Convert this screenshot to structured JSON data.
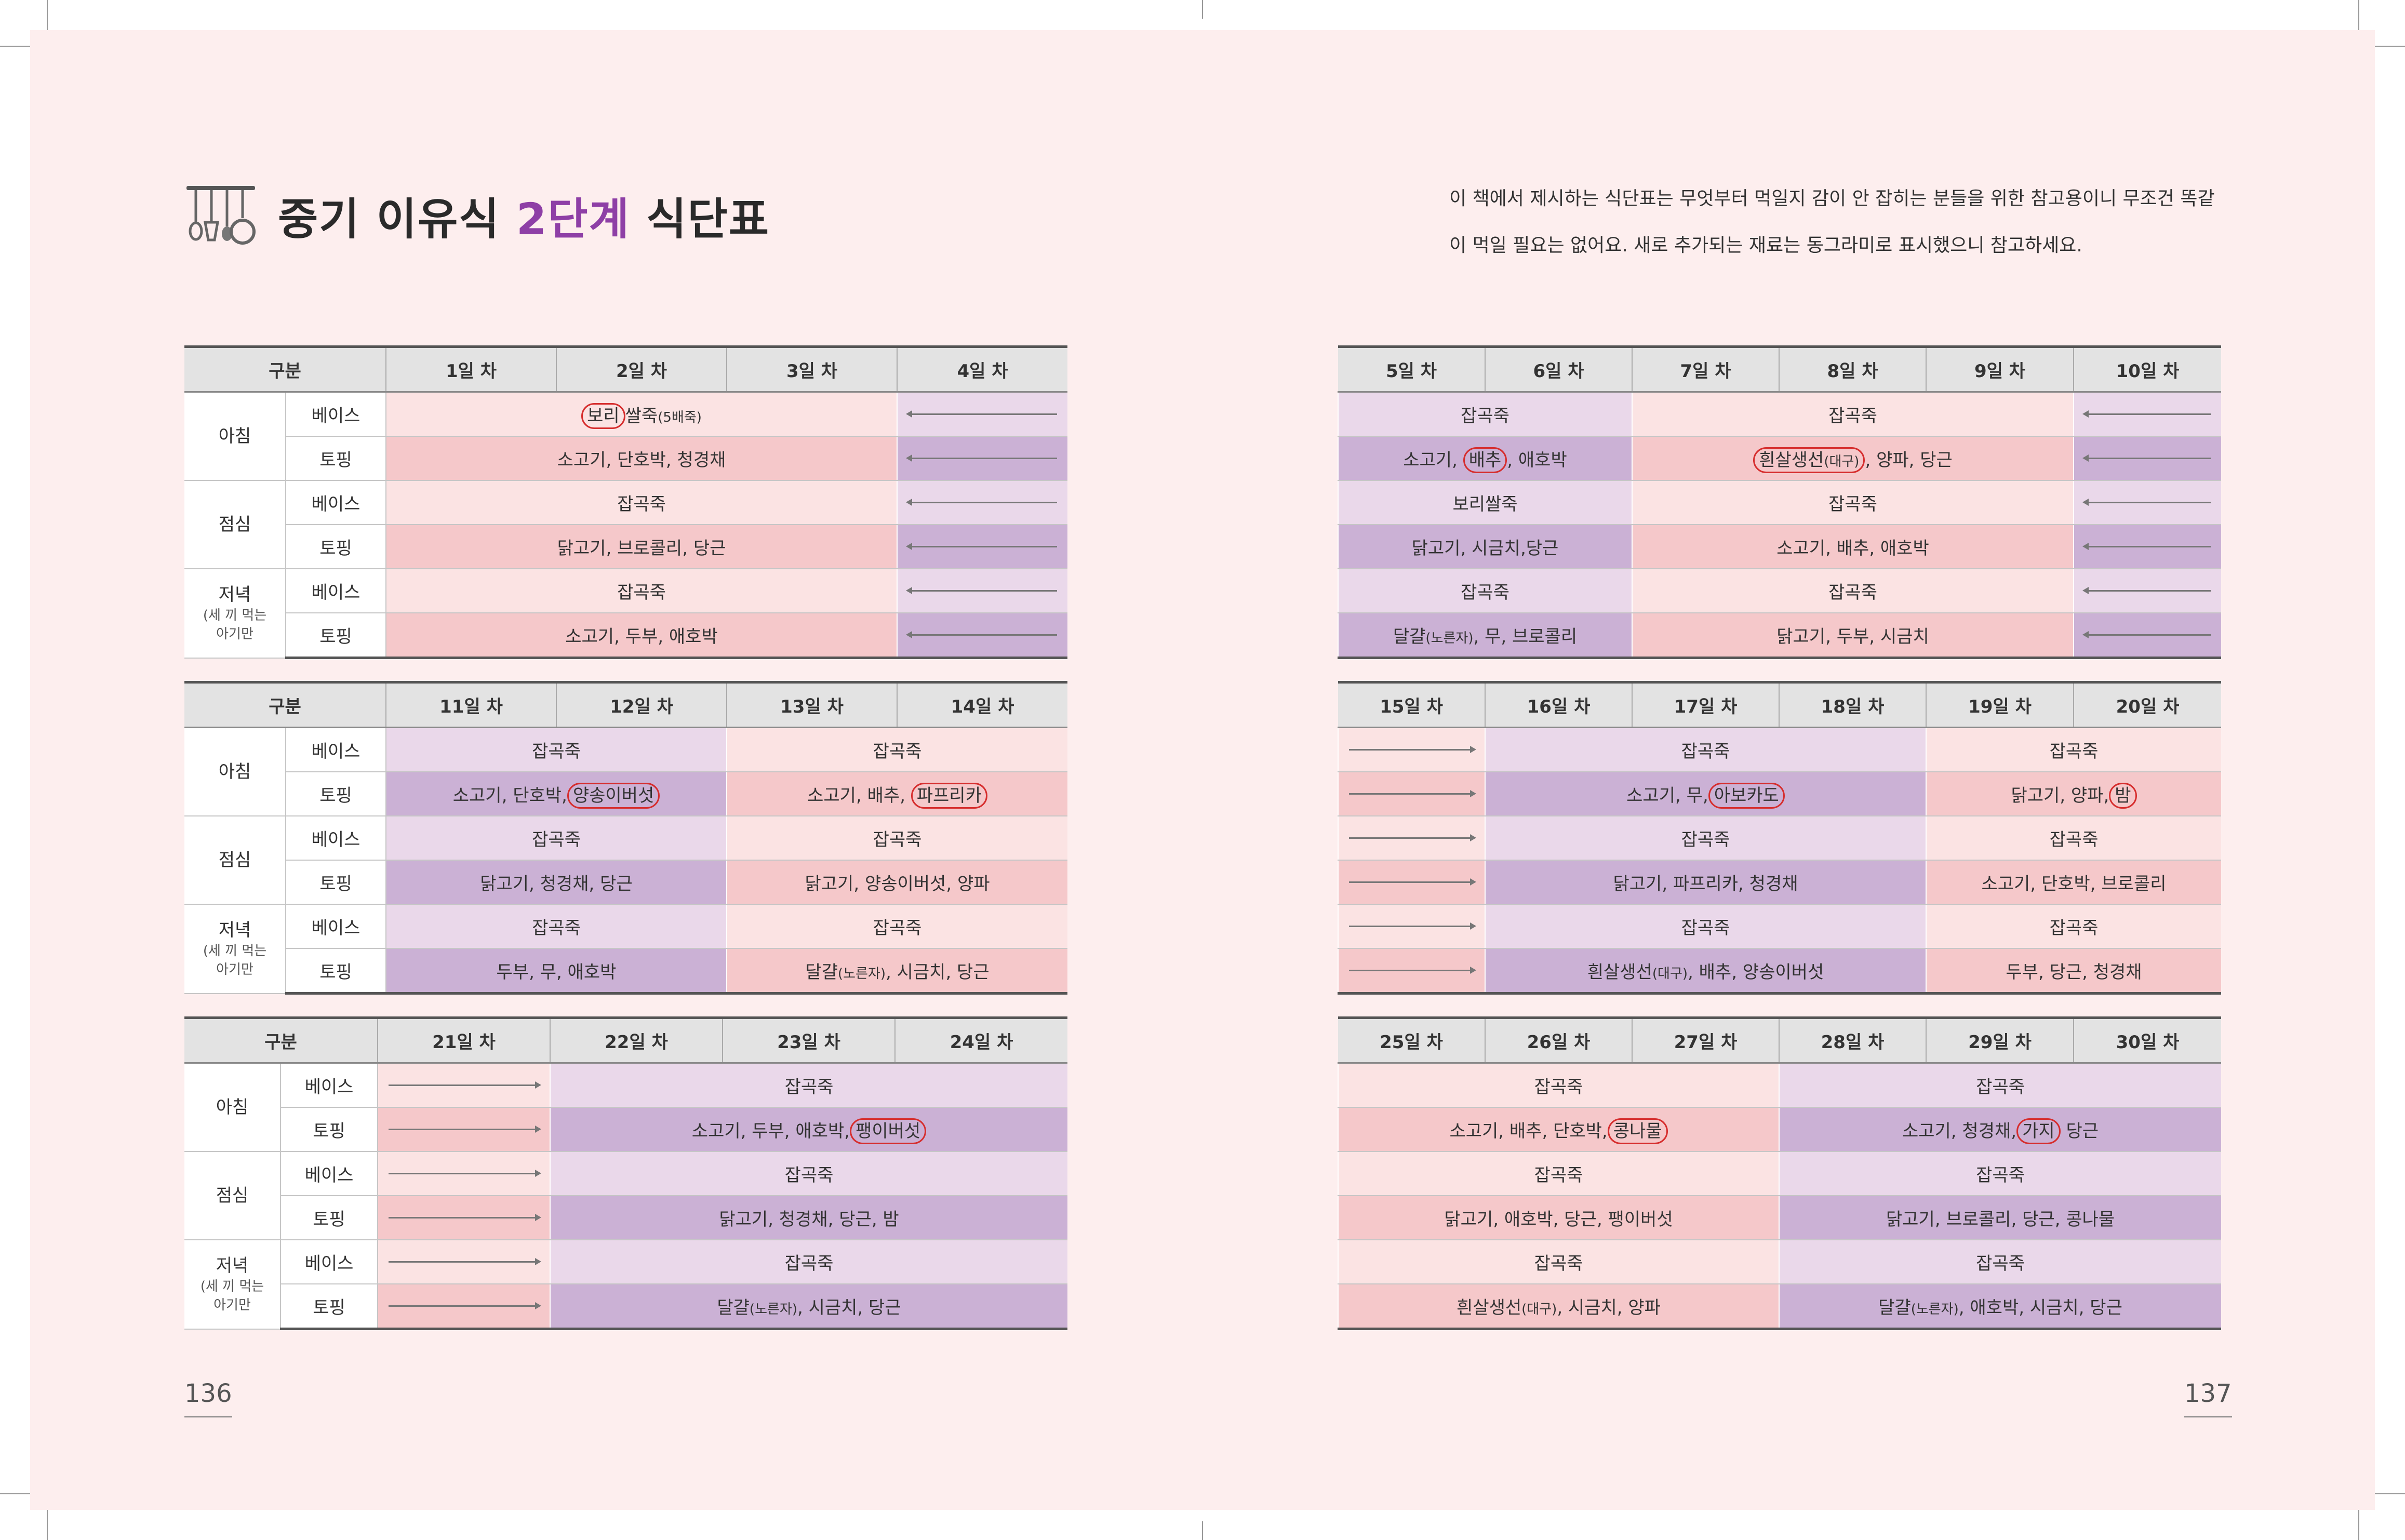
{
  "heading": {
    "title_prefix": "중기 이유식 ",
    "title_accent": "2단계",
    "title_suffix": " 식단표"
  },
  "intro": {
    "text": "이 책에서 제시하는 식단표는 무엇부터 먹일지 감이 안 잡히는 분들을 위한 참고용이니 무조건 똑같이 먹일 필요는 없어요. 새로 추가되는 재료는 동그라미로 표시했으니 참고하세요."
  },
  "labels": {
    "category": "구분",
    "breakfast": "아침",
    "lunch": "점심",
    "dinner": "저녁",
    "dinner_note_1": "(세 끼 먹는",
    "dinner_note_2": "아기만",
    "base": "베이스",
    "topping": "토핑"
  },
  "page_numbers": {
    "left": "136",
    "right": "137"
  },
  "tables": {
    "t1": {
      "days": [
        "1일 차",
        "2일 차",
        "3일 차",
        "4일 차"
      ]
    },
    "t2": {
      "days": [
        "5일 차",
        "6일 차",
        "7일 차",
        "8일 차",
        "9일 차",
        "10일 차"
      ]
    },
    "t3": {
      "days": [
        "11일 차",
        "12일 차",
        "13일 차",
        "14일 차"
      ]
    },
    "t4": {
      "days": [
        "15일 차",
        "16일 차",
        "17일 차",
        "18일 차",
        "19일 차",
        "20일 차"
      ]
    },
    "t5": {
      "days": [
        "21일 차",
        "22일 차",
        "23일 차",
        "24일 차"
      ]
    },
    "t6": {
      "days": [
        "25일 차",
        "26일 차",
        "27일 차",
        "28일 차",
        "29일 차",
        "30일 차"
      ]
    }
  },
  "food": {
    "japgokjuk": "잡곡죽",
    "bori": "보리",
    "ssaljuk_5": "쌀죽",
    "bae5": "(5배죽)",
    "soegogi_danhobak_cheonggyeongchae": "소고기, 단호박, 청경채",
    "dakgogi_brocoli_danggeun": "닭고기, 브로콜리, 당근",
    "soegogi_dubu_aehobak": "소고기, 두부, 애호박",
    "soegogi_comma": "소고기, ",
    "baechu": "배추",
    "comma_aehobak": ", 애호박",
    "huinsal": "흰살생선",
    "daegu": "(대구)",
    "comma_yangpa_danggeun": ", 양파, 당근",
    "borissaljuk": "보리쌀죽",
    "dakgogi_sigeumchi_danggeun": "닭고기, 시금치,당근",
    "soegogi_baechu_aehobak": "소고기, 배추, 애호박",
    "dalgyal": "달걀",
    "noreunja": "(노른자)",
    "comma_mu_brocoli": ", 무, 브로콜리",
    "dakgogi_dubu_sigeumchi": "닭고기, 두부, 시금치",
    "soegogi_danhobak_comma": "소고기, 단호박,",
    "yangsong": "양송이버섯",
    "soegogi_baechu_comma": "소고기, 배추,",
    "paprika": "파프리카",
    "dakgogi_cheonggyeongchae_danggeun": "닭고기, 청경채, 당근",
    "dakgogi_yangsong_yangpa": "닭고기, 양송이버섯, 양파",
    "dubu_mu_aehobak": "두부, 무, 애호박",
    "comma_sigeumchi_danggeun": ", 시금치, 당근",
    "soegogi_mu_comma": "소고기, 무,",
    "avocado": "아보카도",
    "dakgogi_yangpa_comma": "닭고기, 양파,",
    "bam": "밤",
    "dakgogi_paprika_cheonggyeongchae": "닭고기, 파프리카, 청경채",
    "soegogi_danhobak_brocoli": "소고기, 단호박, 브로콜리",
    "comma_baechu_yangsong": ", 배추, 양송이버섯",
    "dubu_danggeun_cheonggyeongchae": "두부, 당근, 청경채",
    "soegogi_dubu_aehobak_comma": "소고기, 두부, 애호박,",
    "paengi": "팽이버섯",
    "dakgogi_cheonggyeongchae_danggeun_bam": "닭고기, 청경채, 당근, 밤",
    "soegogi_baechu_danhobak_comma": "소고기, 배추, 단호박,",
    "kongnamul": "콩나물",
    "soegogi_cheonggyeongchae_comma": "소고기, 청경채,",
    "gaji": "가지",
    "space_danggeun": " 당근",
    "dakgogi_aehobak_danggeun_paengi": "닭고기, 애호박, 당근, 팽이버섯",
    "dakgogi_brocoli_danggeun_kongnamul": "닭고기, 브로콜리, 당근, 콩나물",
    "comma_sigeumchi_yangpa": ", 시금치, 양파",
    "comma_aehobak_sigeumchi_danggeun": ", 애호박, 시금치, 당근"
  }
}
